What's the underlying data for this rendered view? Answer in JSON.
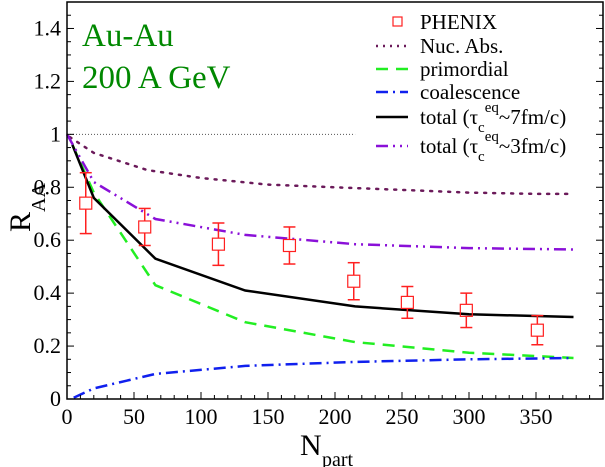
{
  "annotation": {
    "line1": "Au-Au",
    "line2": "200 A GeV",
    "color": "#008800"
  },
  "chart_data": {
    "type": "line",
    "title": "",
    "xlabel": "N_part",
    "ylabel": "R_AA",
    "xlim": [
      0,
      400
    ],
    "ylim": [
      0,
      1.5
    ],
    "x_ticks": [
      0,
      50,
      100,
      150,
      200,
      250,
      300,
      350
    ],
    "y_ticks": [
      0,
      0.2,
      0.4,
      0.6,
      0.8,
      1,
      1.2,
      1.4
    ],
    "x_tick_labels": [
      "0",
      "50",
      "100",
      "150",
      "200",
      "250",
      "300",
      "350"
    ],
    "y_tick_labels": [
      "0",
      "0.2",
      "0.4",
      "0.6",
      "0.8",
      "1",
      "1.2",
      "1.4"
    ],
    "reference_line": {
      "y": 1,
      "x_range": [
        0,
        215
      ],
      "style": "dotted",
      "color": "#555555"
    },
    "legend_position": "upper right",
    "series": [
      {
        "name": "PHENIX",
        "kind": "points",
        "color": "#ff2020",
        "marker": "open-square",
        "x": [
          14,
          58,
          113,
          166,
          214,
          254,
          298,
          351
        ],
        "y": [
          0.74,
          0.65,
          0.585,
          0.58,
          0.445,
          0.365,
          0.335,
          0.26
        ],
        "err_low": [
          0.115,
          0.07,
          0.08,
          0.07,
          0.07,
          0.06,
          0.065,
          0.055
        ],
        "err_high": [
          0.115,
          0.07,
          0.08,
          0.07,
          0.07,
          0.06,
          0.065,
          0.055
        ]
      },
      {
        "name": "Nuc. Abs.",
        "kind": "line",
        "color": "#6b1a5a",
        "dash": "2,7",
        "width": 2.5,
        "x": [
          2,
          20,
          60,
          100,
          150,
          200,
          250,
          300,
          350,
          378
        ],
        "y": [
          0.99,
          0.93,
          0.865,
          0.835,
          0.81,
          0.8,
          0.79,
          0.78,
          0.775,
          0.775
        ]
      },
      {
        "name": "primordial",
        "kind": "line",
        "color": "#22ee22",
        "dash": "12,8",
        "width": 2.5,
        "x": [
          4,
          20,
          66,
          133,
          215,
          300,
          378
        ],
        "y": [
          0.96,
          0.78,
          0.43,
          0.29,
          0.215,
          0.175,
          0.155
        ]
      },
      {
        "name": "coalescence",
        "kind": "line",
        "color": "#1020ee",
        "dash": "12,5,2,5",
        "width": 2.5,
        "x": [
          5,
          20,
          66,
          133,
          215,
          300,
          378
        ],
        "y": [
          0.005,
          0.04,
          0.095,
          0.125,
          0.14,
          0.15,
          0.155
        ]
      },
      {
        "name": "total (τ_c^eq~7fm/c)",
        "kind": "line",
        "color": "#000000",
        "dash": "",
        "width": 2.5,
        "x": [
          4,
          20,
          66,
          133,
          215,
          300,
          378
        ],
        "y": [
          0.96,
          0.76,
          0.53,
          0.41,
          0.35,
          0.32,
          0.31
        ]
      },
      {
        "name": "total (τ_c^eq~3fm/c)",
        "kind": "line",
        "color": "#8a10d8",
        "dash": "12,5,2,5,2,5",
        "width": 2.5,
        "x": [
          0,
          20,
          66,
          133,
          215,
          300,
          378
        ],
        "y": [
          1.0,
          0.82,
          0.68,
          0.62,
          0.585,
          0.57,
          0.565
        ]
      }
    ]
  },
  "legend": {
    "items": [
      {
        "label": "PHENIX",
        "sup": "",
        "sub": "",
        "tail": ""
      },
      {
        "label": "Nuc. Abs.",
        "sup": "",
        "sub": "",
        "tail": ""
      },
      {
        "label": "primordial",
        "sup": "",
        "sub": "",
        "tail": ""
      },
      {
        "label": "coalescence",
        "sup": "",
        "sub": "",
        "tail": ""
      },
      {
        "label": "total (τ",
        "sub": "c",
        "sup": "eq",
        "tail": "~7fm/c)"
      },
      {
        "label": "total (τ",
        "sub": "c",
        "sup": "eq",
        "tail": "~3fm/c)"
      }
    ]
  },
  "axes": {
    "xlabel_main": "N",
    "xlabel_sub": "part",
    "ylabel_main": "R",
    "ylabel_sub": "AA"
  }
}
